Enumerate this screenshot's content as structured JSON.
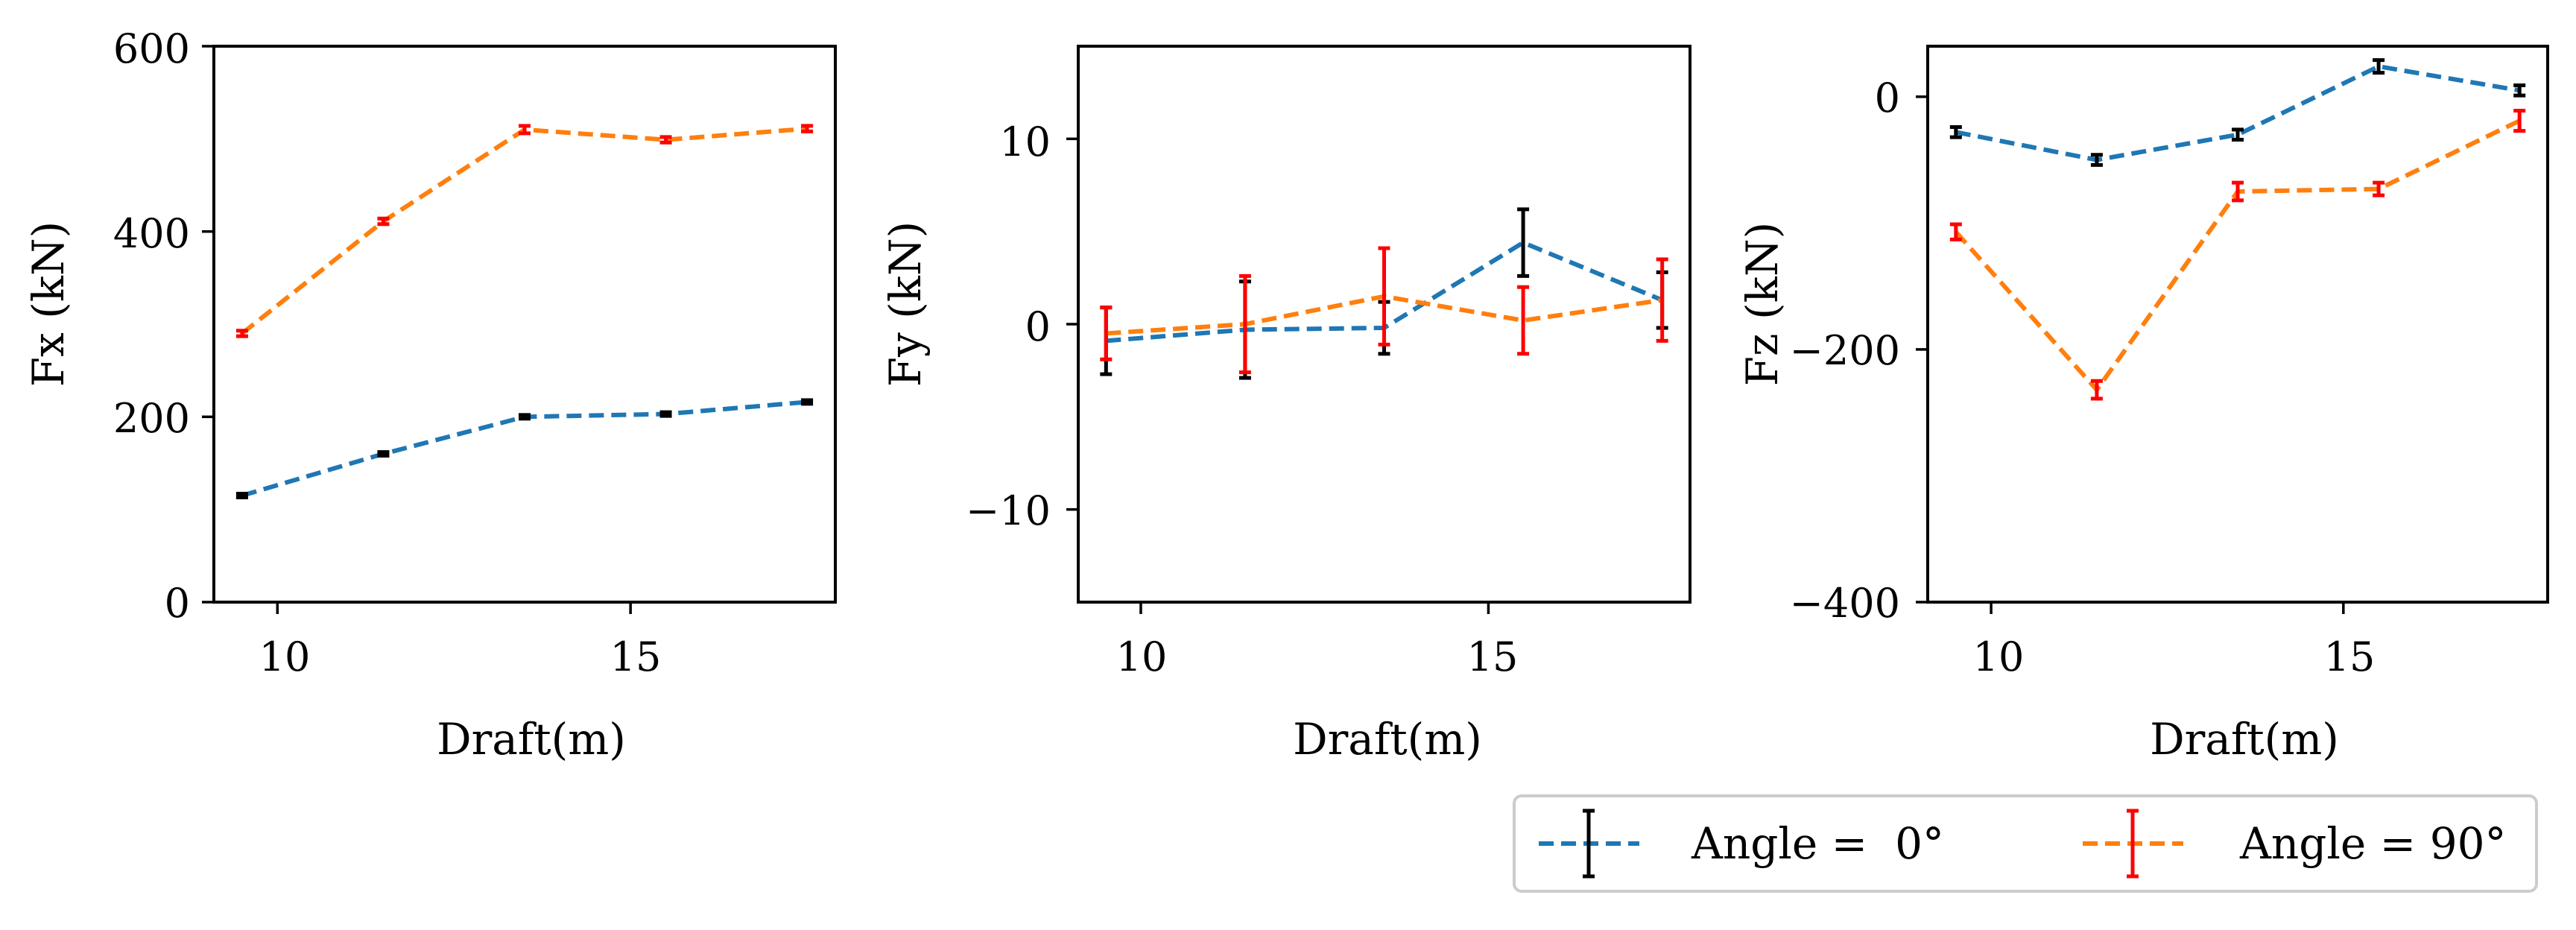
{
  "colors": {
    "series0": "#1f77b4",
    "series1": "#ff7f0e",
    "err0": "#000000",
    "err1": "#ff0000"
  },
  "legend": {
    "entries": [
      "Angle =  0°",
      "Angle = 90°"
    ],
    "placement": "bottom-right"
  },
  "chart_data": [
    {
      "type": "line",
      "panel": "fx",
      "x": [
        9.5,
        11.5,
        13.5,
        15.5,
        17.5
      ],
      "xlabel": "Draft(m)",
      "ylabel": "Fx (kN)",
      "xlim": [
        9.1,
        17.9
      ],
      "ylim": [
        0,
        600
      ],
      "xticks": [
        10,
        15
      ],
      "yticks": [
        0,
        200,
        400,
        600
      ],
      "xtick_labels": [
        "10",
        "15"
      ],
      "ytick_labels": [
        "0",
        "200",
        "400",
        "600"
      ],
      "series": [
        {
          "name": "Angle = 0°",
          "values": [
            115,
            160,
            200,
            203,
            216
          ],
          "errors": [
            2,
            2,
            2,
            2,
            2
          ]
        },
        {
          "name": "Angle = 90°",
          "values": [
            290,
            411,
            510,
            499,
            511
          ],
          "errors": [
            3,
            3,
            4,
            3,
            3
          ]
        }
      ]
    },
    {
      "type": "line",
      "panel": "fy",
      "x": [
        9.5,
        11.5,
        13.5,
        15.5,
        17.5
      ],
      "xlabel": "Draft(m)",
      "ylabel": "Fy (kN)",
      "xlim": [
        9.1,
        17.9
      ],
      "ylim": [
        -15,
        15
      ],
      "xticks": [
        10,
        15
      ],
      "yticks": [
        -10,
        0,
        10
      ],
      "xtick_labels": [
        "10",
        "15"
      ],
      "ytick_labels": [
        "−10",
        "0",
        "10"
      ],
      "series": [
        {
          "name": "Angle = 0°",
          "values": [
            -0.9,
            -0.3,
            -0.2,
            4.4,
            1.3
          ],
          "errors": [
            1.8,
            2.6,
            1.4,
            1.8,
            1.5
          ]
        },
        {
          "name": "Angle = 90°",
          "values": [
            -0.5,
            0.0,
            1.5,
            0.2,
            1.3
          ],
          "errors": [
            1.4,
            2.6,
            2.6,
            1.8,
            2.2
          ]
        }
      ]
    },
    {
      "type": "line",
      "panel": "fz",
      "x": [
        9.5,
        11.5,
        13.5,
        15.5,
        17.5
      ],
      "xlabel": "Draft(m)",
      "ylabel": "Fz (kN)",
      "xlim": [
        9.1,
        17.9
      ],
      "ylim": [
        -400,
        40
      ],
      "xticks": [
        10,
        15
      ],
      "yticks": [
        -400,
        -200,
        0
      ],
      "xtick_labels": [
        "10",
        "15"
      ],
      "ytick_labels": [
        "−400",
        "−200",
        "0"
      ],
      "series": [
        {
          "name": "Angle = 0°",
          "values": [
            -28,
            -50,
            -30,
            24,
            5
          ],
          "errors": [
            4,
            4,
            4,
            5,
            4
          ]
        },
        {
          "name": "Angle = 90°",
          "values": [
            -107,
            -232,
            -75,
            -73,
            -19
          ],
          "errors": [
            6,
            7,
            7,
            5,
            8
          ]
        }
      ]
    }
  ]
}
